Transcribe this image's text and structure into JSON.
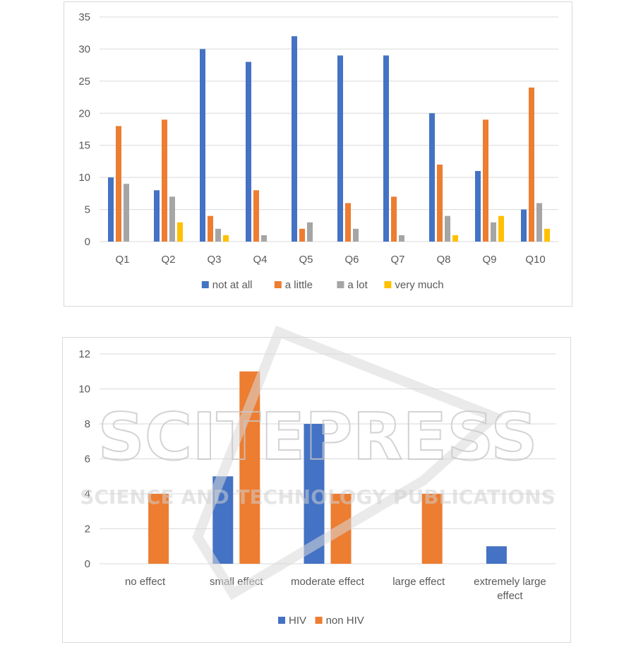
{
  "chart_data": [
    {
      "type": "bar",
      "categories": [
        "Q1",
        "Q2",
        "Q3",
        "Q4",
        "Q5",
        "Q6",
        "Q7",
        "Q8",
        "Q9",
        "Q10"
      ],
      "series": [
        {
          "name": "not at all",
          "color": "#4472c4",
          "values": [
            10,
            8,
            30,
            28,
            32,
            29,
            29,
            20,
            11,
            5
          ]
        },
        {
          "name": "a little",
          "color": "#ed7d31",
          "values": [
            18,
            19,
            4,
            8,
            2,
            6,
            7,
            12,
            19,
            24
          ]
        },
        {
          "name": "a lot",
          "color": "#a5a5a5",
          "values": [
            9,
            7,
            2,
            1,
            3,
            2,
            1,
            4,
            3,
            6
          ]
        },
        {
          "name": "very much",
          "color": "#ffc000",
          "values": [
            0,
            3,
            1,
            0,
            0,
            0,
            0,
            1,
            4,
            2
          ]
        }
      ],
      "ylim": [
        0,
        35
      ],
      "yticks": [
        0,
        5,
        10,
        15,
        20,
        25,
        30,
        35
      ],
      "grid": true,
      "legend_position": "bottom"
    },
    {
      "type": "bar",
      "categories": [
        "no effect",
        "small effect",
        "moderate effect",
        "large effect",
        "extremely large effect"
      ],
      "category_lines": [
        [
          "no effect"
        ],
        [
          "small effect"
        ],
        [
          "moderate effect"
        ],
        [
          "large effect"
        ],
        [
          "extremely large",
          "effect"
        ]
      ],
      "series": [
        {
          "name": "HIV",
          "color": "#4472c4",
          "values": [
            0,
            5,
            8,
            0,
            1
          ]
        },
        {
          "name": "non HIV",
          "color": "#ed7d31",
          "values": [
            4,
            11,
            4,
            4,
            0
          ]
        }
      ],
      "ylim": [
        0,
        12
      ],
      "yticks": [
        0,
        2,
        4,
        6,
        8,
        10,
        12
      ],
      "grid": true,
      "legend_position": "bottom"
    }
  ],
  "watermark": {
    "text": "SCITEPRESS",
    "subtext": "SCIENCE AND TECHNOLOGY PUBLICATIONS",
    "color": "#c8c8c8"
  }
}
